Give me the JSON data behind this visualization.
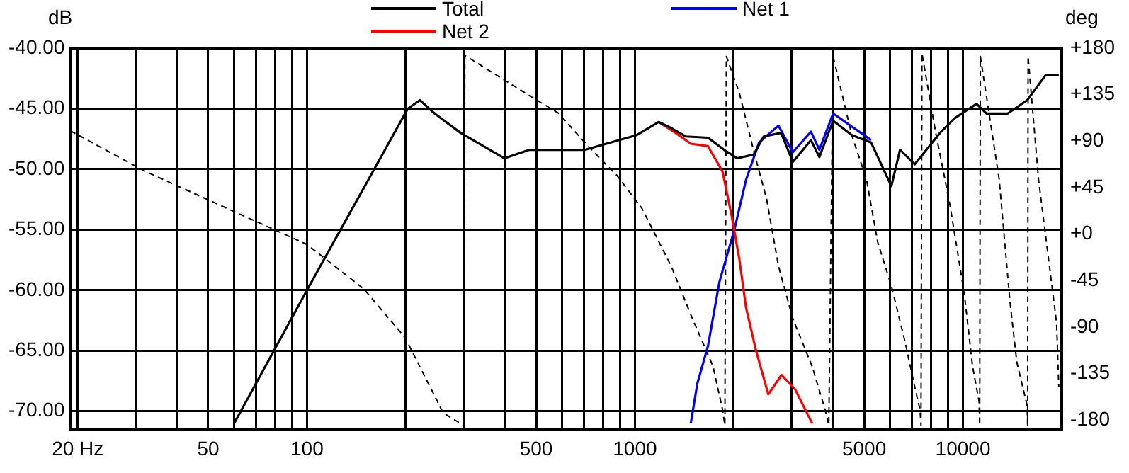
{
  "chart_data": {
    "type": "line",
    "xlabel": null,
    "ylabel": "dB",
    "y2label": "deg",
    "log": "x",
    "grid": true,
    "legend": "top",
    "line_style": "solid",
    "xlim": [
      19,
      20000
    ],
    "xticks": [
      {
        "value": 20,
        "label": "20 Hz"
      },
      {
        "value": 30,
        "label": null
      },
      {
        "value": 40,
        "label": null
      },
      50,
      {
        "value": 60,
        "label": null
      },
      {
        "value": 70,
        "label": null
      },
      {
        "value": 80,
        "label": null
      },
      {
        "value": 90,
        "label": null
      },
      100,
      {
        "value": 200,
        "label": null
      },
      {
        "value": 300,
        "label": null
      },
      {
        "value": 400,
        "label": null
      },
      500,
      {
        "value": 600,
        "label": null
      },
      {
        "value": 700,
        "label": null
      },
      {
        "value": 800,
        "label": null
      },
      {
        "value": 900,
        "label": null
      },
      1000,
      {
        "value": 2000,
        "label": null
      },
      {
        "value": 3000,
        "label": null
      },
      {
        "value": 4000,
        "label": null
      },
      5000,
      {
        "value": 6000,
        "label": null
      },
      {
        "value": 7000,
        "label": null
      },
      {
        "value": 8000,
        "label": null
      },
      {
        "value": 9000,
        "label": null
      },
      10000,
      {
        "value": 20000,
        "label": null
      }
    ],
    "ylim": [
      -71.5,
      -40
    ],
    "yticks": [
      {
        "value": -40,
        "label": "-40.00"
      },
      {
        "value": -45,
        "label": "-45.00"
      },
      {
        "value": -50,
        "label": "-50.00"
      },
      {
        "value": -55,
        "label": "-55.00"
      },
      {
        "value": -60,
        "label": "-60.00"
      },
      {
        "value": -65,
        "label": "-65.00"
      },
      {
        "value": -70,
        "label": "-70.00"
      }
    ],
    "y2lim": [
      -189,
      180
    ],
    "y2ticks": [
      {
        "value": 180,
        "label": "+180"
      },
      {
        "value": 135,
        "label": "+135"
      },
      {
        "value": 90,
        "label": "+90"
      },
      {
        "value": 45,
        "label": "+45"
      },
      {
        "value": 0,
        "label": "+0"
      },
      -45,
      -90,
      -135,
      -180
    ],
    "series": [
      {
        "name": "Total",
        "color": "#000000",
        "x": [
          60,
          100,
          203,
          221,
          245,
          294,
          400,
          477,
          705,
          1010,
          1180,
          1290,
          1430,
          1670,
          1870,
          2050,
          2300,
          2470,
          2790,
          3030,
          3440,
          3650,
          4020,
          4590,
          5250,
          6050,
          6430,
          7130,
          8510,
          9430,
          11000,
          11800,
          13700,
          15700,
          17900,
          19600
        ],
        "values": [
          -71.0,
          -60.0,
          -45.0,
          -44.3,
          -45.4,
          -47.0,
          -49.1,
          -48.4,
          -48.4,
          -47.2,
          -46.1,
          -46.6,
          -47.3,
          -47.4,
          -48.4,
          -49.1,
          -48.8,
          -47.3,
          -47.0,
          -49.4,
          -47.6,
          -49.0,
          -46.0,
          -47.2,
          -47.8,
          -51.4,
          -48.4,
          -49.6,
          -47.0,
          -45.8,
          -44.6,
          -45.4,
          -45.4,
          -44.3,
          -42.2,
          -42.2
        ]
      },
      {
        "name": "Net 2",
        "color": "#ff0000",
        "x": [
          1180,
          1330,
          1480,
          1670,
          1850,
          1970,
          2080,
          2180,
          2340,
          2550,
          2800,
          3080,
          3470
        ],
        "values": [
          -46.1,
          -47.0,
          -47.9,
          -48.1,
          -50.2,
          -53.8,
          -57.4,
          -61.4,
          -65.0,
          -68.6,
          -67.0,
          -68.2,
          -71.0
        ]
      },
      {
        "name": "Net 1",
        "color": "#0000ff",
        "x": [
          1480,
          1550,
          1670,
          1810,
          2010,
          2180,
          2390,
          2740,
          3030,
          3440,
          3650,
          4020,
          5250
        ],
        "values": [
          -71.0,
          -67.7,
          -64.6,
          -59.3,
          -55.0,
          -50.9,
          -47.8,
          -46.4,
          -48.6,
          -46.9,
          -48.4,
          -45.4,
          -47.6
        ]
      },
      {
        "color": "#000000",
        "axis": "y2",
        "line_style": "dashed",
        "x": [
          19,
          32,
          100,
          149,
          199,
          250,
          260,
          300,
          303,
          477,
          585,
          720,
          880,
          1050,
          1290,
          1480,
          1730,
          1850,
          1880,
          1900,
          2080,
          2300,
          2520,
          2740,
          3030,
          3470,
          3800,
          3900,
          4020,
          4590,
          5080,
          5500,
          6050,
          6680,
          7130,
          7400,
          7450,
          7500,
          8250,
          9120,
          10100,
          10700,
          11200,
          11250,
          11300,
          12900,
          13900,
          14600,
          15700,
          15750,
          15800,
          17000,
          19300,
          19600
        ],
        "values": [
          100,
          61,
          -10,
          -53,
          -100,
          -162,
          -173,
          -185,
          173,
          134,
          117,
          85,
          57,
          25,
          -31,
          -78,
          -128,
          -170,
          -185,
          172,
          137,
          81,
          34,
          -31,
          -82,
          -128,
          -170,
          -185,
          172,
          95,
          53,
          -8,
          -50,
          -106,
          -148,
          -170,
          -185,
          175,
          99,
          29,
          -58,
          -128,
          -162,
          -185,
          172,
          53,
          -64,
          -124,
          -166,
          -185,
          172,
          53,
          -86,
          -148
        ]
      }
    ]
  }
}
